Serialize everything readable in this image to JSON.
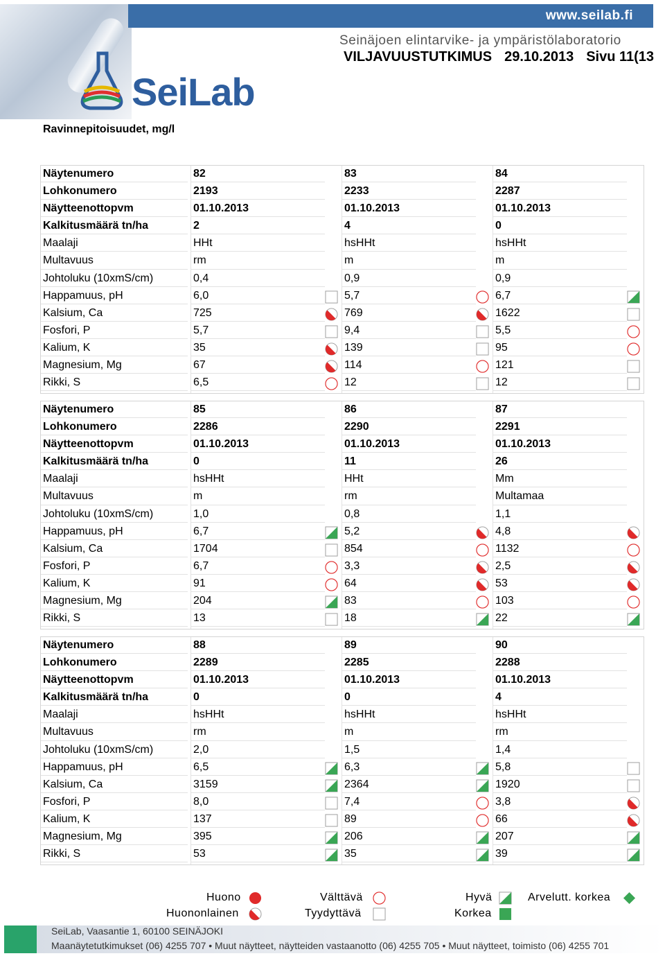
{
  "header": {
    "url": "www.seilab.fi",
    "lab_name": "Seinäjoen elintarvike- ja ympäristölaboratorio",
    "logo_text": "SeiLab",
    "doc_title": "VILJAVUUSTUTKIMUS",
    "date": "29.10.2013",
    "page": "Sivu 11(13"
  },
  "section_title": "Ravinnepitoisuudet, mg/l",
  "row_labels": [
    "Näytenumero",
    "Lohkonumero",
    "Näytteenottopvm",
    "Kalkitusmäärä tn/ha",
    "Maalaji",
    "Multavuus",
    "Johtoluku (10xmS/cm)",
    "Happamuus, pH",
    "Kalsium, Ca",
    "Fosfori, P",
    "Kalium, K",
    "Magnesium, Mg",
    "Rikki, S"
  ],
  "tables": [
    {
      "samples": [
        {
          "values": [
            "82",
            "2193",
            "01.10.2013",
            "2",
            "HHt",
            "rm",
            "0,4",
            "6,0",
            "725",
            "5,7",
            "35",
            "67",
            "6,5"
          ],
          "status": [
            "tyydyttava",
            "huononlainen",
            "tyydyttava",
            "huononlainen",
            "huononlainen",
            "valttava"
          ]
        },
        {
          "values": [
            "83",
            "2233",
            "01.10.2013",
            "4",
            "hsHHt",
            "m",
            "0,9",
            "5,7",
            "769",
            "9,4",
            "139",
            "114",
            "12"
          ],
          "status": [
            "valttava",
            "huononlainen",
            "tyydyttava",
            "tyydyttava",
            "valttava",
            "tyydyttava"
          ]
        },
        {
          "values": [
            "84",
            "2287",
            "01.10.2013",
            "0",
            "hsHHt",
            "m",
            "0,9",
            "6,7",
            "1622",
            "5,5",
            "95",
            "121",
            "12"
          ],
          "status": [
            "hyva",
            "tyydyttava",
            "valttava",
            "valttava",
            "tyydyttava",
            "tyydyttava"
          ]
        }
      ]
    },
    {
      "samples": [
        {
          "values": [
            "85",
            "2286",
            "01.10.2013",
            "0",
            "hsHHt",
            "m",
            "1,0",
            "6,7",
            "1704",
            "6,7",
            "91",
            "204",
            "13"
          ],
          "status": [
            "hyva",
            "tyydyttava",
            "valttava",
            "valttava",
            "hyva",
            "tyydyttava"
          ]
        },
        {
          "values": [
            "86",
            "2290",
            "01.10.2013",
            "11",
            "HHt",
            "rm",
            "0,8",
            "5,2",
            "854",
            "3,3",
            "64",
            "83",
            "18"
          ],
          "status": [
            "huononlainen",
            "valttava",
            "huononlainen",
            "huononlainen",
            "valttava",
            "hyva"
          ]
        },
        {
          "values": [
            "87",
            "2291",
            "01.10.2013",
            "26",
            "Mm",
            "Multamaa",
            "1,1",
            "4,8",
            "1132",
            "2,5",
            "53",
            "103",
            "22"
          ],
          "status": [
            "huononlainen",
            "valttava",
            "huononlainen",
            "huononlainen",
            "valttava",
            "hyva"
          ]
        }
      ]
    },
    {
      "samples": [
        {
          "values": [
            "88",
            "2289",
            "01.10.2013",
            "0",
            "hsHHt",
            "rm",
            "2,0",
            "6,5",
            "3159",
            "8,0",
            "137",
            "395",
            "53"
          ],
          "status": [
            "hyva",
            "hyva",
            "tyydyttava",
            "tyydyttava",
            "hyva",
            "hyva"
          ]
        },
        {
          "values": [
            "89",
            "2285",
            "01.10.2013",
            "0",
            "hsHHt",
            "m",
            "1,5",
            "6,3",
            "2364",
            "7,4",
            "89",
            "206",
            "35"
          ],
          "status": [
            "hyva",
            "hyva",
            "valttava",
            "valttava",
            "hyva",
            "hyva"
          ]
        },
        {
          "values": [
            "90",
            "2288",
            "01.10.2013",
            "4",
            "hsHHt",
            "rm",
            "1,4",
            "5,8",
            "1920",
            "3,8",
            "66",
            "207",
            "39"
          ],
          "status": [
            "tyydyttava",
            "tyydyttava",
            "huononlainen",
            "huononlainen",
            "hyva",
            "hyva"
          ]
        }
      ]
    }
  ],
  "legend": {
    "huono": "Huono",
    "huononlainen": "Huononlainen",
    "valttava": "Välttävä",
    "tyydyttava": "Tyydyttävä",
    "hyva": "Hyvä",
    "korkea": "Korkea",
    "arvelutt_korkea": "Arvelutt. korkea"
  },
  "footer": {
    "line1": "SeiLab, Vaasantie 1, 60100 SEINÄJOKI",
    "line2": "Maanäytetutkimukset (06) 4255 707 • Muut näytteet, näytteiden vastaanotto (06) 4255 705 • Muut näytteet, toimisto (06) 4255 701"
  },
  "colors": {
    "brand_blue": "#3a6ea8",
    "indicator_red": "#e02a2a",
    "indicator_green": "#3aa655",
    "footer_green": "#29a36a"
  }
}
